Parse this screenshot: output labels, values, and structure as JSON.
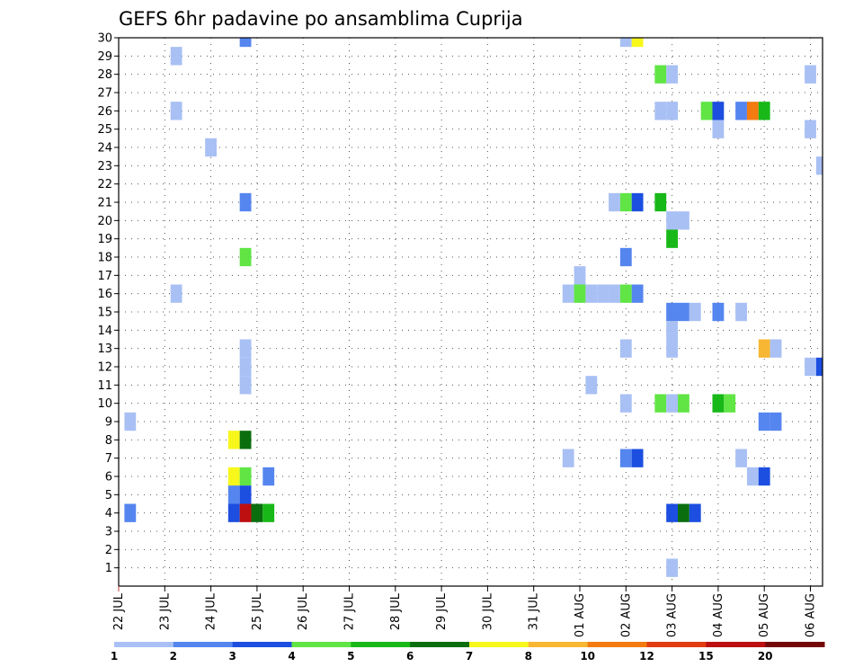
{
  "chart_data": {
    "type": "heatmap",
    "title": "GEFS 6hr padavine po ansamblima Cuprija",
    "xlabel": "",
    "ylabel": "",
    "x_tick_labels": [
      "22 JUL",
      "23 JUL",
      "24 JUL",
      "25 JUL",
      "26 JUL",
      "27 JUL",
      "28 JUL",
      "29 JUL",
      "30 JUL",
      "31 JUL",
      "01 AUG",
      "02 AUG",
      "03 AUG",
      "04 AUG",
      "05 AUG",
      "06 AUG"
    ],
    "x_range_days": [
      0,
      15.25
    ],
    "y_tick_labels": [
      "1",
      "2",
      "3",
      "4",
      "5",
      "6",
      "7",
      "8",
      "9",
      "10",
      "11",
      "12",
      "13",
      "14",
      "15",
      "16",
      "17",
      "18",
      "19",
      "20",
      "21",
      "22",
      "23",
      "24",
      "25",
      "26",
      "27",
      "28",
      "29",
      "30"
    ],
    "y_range": [
      0,
      30
    ],
    "grid": true,
    "legend": {
      "position": "bottom",
      "labels": [
        "1",
        "2",
        "3",
        "4",
        "5",
        "6",
        "7",
        "8",
        "10",
        "12",
        "15",
        "20"
      ],
      "colors": [
        "#a9c0f4",
        "#5585ef",
        "#1c4ee0",
        "#60e545",
        "#18b818",
        "#0a6e0e",
        "#f7f71b",
        "#f8b732",
        "#f37b10",
        "#e13c12",
        "#bd0f10",
        "#740808"
      ]
    },
    "cells": [
      {
        "day": 2.75,
        "member": 30,
        "color": "#5585ef"
      },
      {
        "day": 11.0,
        "member": 30,
        "color": "#a9c0f4"
      },
      {
        "day": 11.25,
        "member": 30,
        "color": "#f7f71b"
      },
      {
        "day": 1.25,
        "member": 29,
        "color": "#a9c0f4"
      },
      {
        "day": 11.75,
        "member": 28,
        "color": "#60e545"
      },
      {
        "day": 12.0,
        "member": 28,
        "color": "#a9c0f4"
      },
      {
        "day": 15.0,
        "member": 28,
        "color": "#a9c0f4"
      },
      {
        "day": 1.25,
        "member": 26,
        "color": "#a9c0f4"
      },
      {
        "day": 11.75,
        "member": 26,
        "color": "#a9c0f4"
      },
      {
        "day": 12.0,
        "member": 26,
        "color": "#a9c0f4"
      },
      {
        "day": 12.75,
        "member": 26,
        "color": "#60e545"
      },
      {
        "day": 13.0,
        "member": 26,
        "color": "#1c4ee0"
      },
      {
        "day": 13.5,
        "member": 26,
        "color": "#5585ef"
      },
      {
        "day": 13.75,
        "member": 26,
        "color": "#f37b10"
      },
      {
        "day": 14.0,
        "member": 26,
        "color": "#18b818"
      },
      {
        "day": 13.0,
        "member": 25,
        "color": "#a9c0f4"
      },
      {
        "day": 15.0,
        "member": 25,
        "color": "#a9c0f4"
      },
      {
        "day": 2.0,
        "member": 24,
        "color": "#a9c0f4"
      },
      {
        "day": 15.25,
        "member": 23,
        "color": "#a9c0f4"
      },
      {
        "day": 2.75,
        "member": 21,
        "color": "#5585ef"
      },
      {
        "day": 10.75,
        "member": 21,
        "color": "#a9c0f4"
      },
      {
        "day": 11.0,
        "member": 21,
        "color": "#60e545"
      },
      {
        "day": 11.25,
        "member": 21,
        "color": "#1c4ee0"
      },
      {
        "day": 11.75,
        "member": 21,
        "color": "#18b818"
      },
      {
        "day": 12.0,
        "member": 20,
        "color": "#a9c0f4"
      },
      {
        "day": 12.25,
        "member": 20,
        "color": "#a9c0f4"
      },
      {
        "day": 12.0,
        "member": 19,
        "color": "#18b818"
      },
      {
        "day": 2.75,
        "member": 18,
        "color": "#60e545"
      },
      {
        "day": 11.0,
        "member": 18,
        "color": "#5585ef"
      },
      {
        "day": 10.0,
        "member": 17,
        "color": "#a9c0f4"
      },
      {
        "day": 1.25,
        "member": 16,
        "color": "#a9c0f4"
      },
      {
        "day": 9.75,
        "member": 16,
        "color": "#a9c0f4"
      },
      {
        "day": 10.0,
        "member": 16,
        "color": "#60e545"
      },
      {
        "day": 10.25,
        "member": 16,
        "color": "#a9c0f4"
      },
      {
        "day": 10.5,
        "member": 16,
        "color": "#a9c0f4"
      },
      {
        "day": 10.75,
        "member": 16,
        "color": "#a9c0f4"
      },
      {
        "day": 11.0,
        "member": 16,
        "color": "#60e545"
      },
      {
        "day": 11.25,
        "member": 16,
        "color": "#5585ef"
      },
      {
        "day": 12.0,
        "member": 15,
        "color": "#5585ef"
      },
      {
        "day": 12.25,
        "member": 15,
        "color": "#5585ef"
      },
      {
        "day": 12.5,
        "member": 15,
        "color": "#a9c0f4"
      },
      {
        "day": 13.0,
        "member": 15,
        "color": "#5585ef"
      },
      {
        "day": 13.5,
        "member": 15,
        "color": "#a9c0f4"
      },
      {
        "day": 12.0,
        "member": 14,
        "color": "#a9c0f4"
      },
      {
        "day": 2.75,
        "member": 13,
        "color": "#a9c0f4"
      },
      {
        "day": 11.0,
        "member": 13,
        "color": "#a9c0f4"
      },
      {
        "day": 12.0,
        "member": 13,
        "color": "#a9c0f4"
      },
      {
        "day": 14.0,
        "member": 13,
        "color": "#f8b732"
      },
      {
        "day": 14.25,
        "member": 13,
        "color": "#a9c0f4"
      },
      {
        "day": 2.75,
        "member": 12,
        "color": "#a9c0f4"
      },
      {
        "day": 15.0,
        "member": 12,
        "color": "#a9c0f4"
      },
      {
        "day": 15.25,
        "member": 12,
        "color": "#1c4ee0"
      },
      {
        "day": 2.75,
        "member": 11,
        "color": "#a9c0f4"
      },
      {
        "day": 10.25,
        "member": 11,
        "color": "#a9c0f4"
      },
      {
        "day": 11.0,
        "member": 10,
        "color": "#a9c0f4"
      },
      {
        "day": 11.75,
        "member": 10,
        "color": "#60e545"
      },
      {
        "day": 12.0,
        "member": 10,
        "color": "#a9c0f4"
      },
      {
        "day": 12.25,
        "member": 10,
        "color": "#60e545"
      },
      {
        "day": 13.0,
        "member": 10,
        "color": "#18b818"
      },
      {
        "day": 13.25,
        "member": 10,
        "color": "#60e545"
      },
      {
        "day": 0.25,
        "member": 9,
        "color": "#a9c0f4"
      },
      {
        "day": 14.0,
        "member": 9,
        "color": "#5585ef"
      },
      {
        "day": 14.25,
        "member": 9,
        "color": "#5585ef"
      },
      {
        "day": 2.5,
        "member": 8,
        "color": "#f7f71b"
      },
      {
        "day": 2.75,
        "member": 8,
        "color": "#0a6e0e"
      },
      {
        "day": 9.75,
        "member": 7,
        "color": "#a9c0f4"
      },
      {
        "day": 11.0,
        "member": 7,
        "color": "#5585ef"
      },
      {
        "day": 11.25,
        "member": 7,
        "color": "#1c4ee0"
      },
      {
        "day": 13.5,
        "member": 7,
        "color": "#a9c0f4"
      },
      {
        "day": 2.5,
        "member": 6,
        "color": "#f7f71b"
      },
      {
        "day": 2.75,
        "member": 6,
        "color": "#60e545"
      },
      {
        "day": 3.25,
        "member": 6,
        "color": "#5585ef"
      },
      {
        "day": 13.75,
        "member": 6,
        "color": "#a9c0f4"
      },
      {
        "day": 14.0,
        "member": 6,
        "color": "#1c4ee0"
      },
      {
        "day": 2.5,
        "member": 5,
        "color": "#5585ef"
      },
      {
        "day": 2.75,
        "member": 5,
        "color": "#1c4ee0"
      },
      {
        "day": 0.25,
        "member": 4,
        "color": "#5585ef"
      },
      {
        "day": 2.5,
        "member": 4,
        "color": "#1c4ee0"
      },
      {
        "day": 2.75,
        "member": 4,
        "color": "#bd0f10"
      },
      {
        "day": 3.0,
        "member": 4,
        "color": "#0a6e0e"
      },
      {
        "day": 3.25,
        "member": 4,
        "color": "#18b818"
      },
      {
        "day": 12.0,
        "member": 4,
        "color": "#1c4ee0"
      },
      {
        "day": 12.25,
        "member": 4,
        "color": "#0a6e0e"
      },
      {
        "day": 12.5,
        "member": 4,
        "color": "#1c4ee0"
      },
      {
        "day": 12.0,
        "member": 1,
        "color": "#a9c0f4"
      }
    ]
  }
}
